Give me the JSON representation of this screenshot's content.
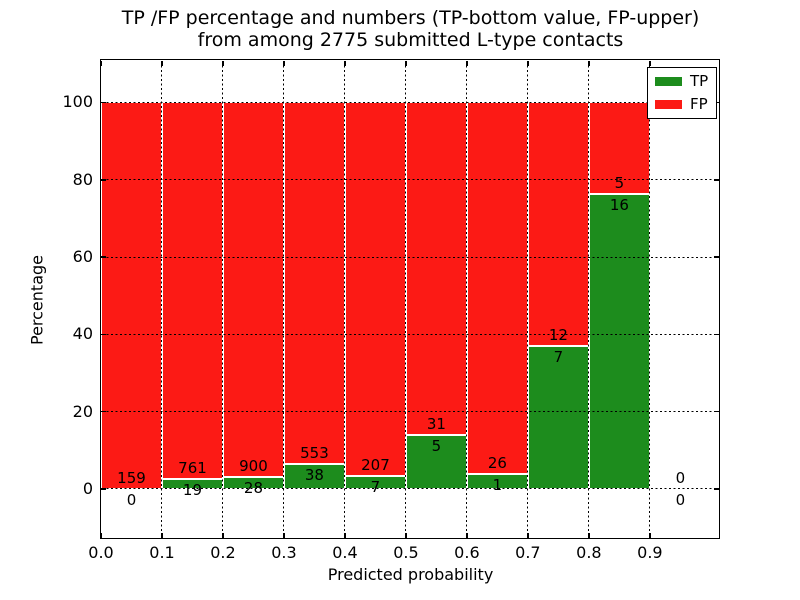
{
  "chart_data": {
    "type": "bar",
    "stacked": true,
    "normalized": "each bar stacks to 100%",
    "title_lines": [
      "TP /FP percentage and numbers (TP-bottom value, FP-upper)",
      "from among 2775 submitted L-type contacts"
    ],
    "xlabel": "Predicted probability",
    "ylabel": "Percentage",
    "total_contacts": 2775,
    "x_tick_labels": [
      "0.0",
      "0.1",
      "0.2",
      "0.3",
      "0.4",
      "0.5",
      "0.6",
      "0.7",
      "0.8",
      "0.9"
    ],
    "y_ticks": [
      0,
      20,
      40,
      60,
      80,
      100
    ],
    "xlim": [
      0,
      1.015
    ],
    "ylim": [
      -13,
      111
    ],
    "grid": {
      "style": "dotted",
      "color": "#000000",
      "on": true
    },
    "bins": [
      {
        "x0": 0.0,
        "x1": 0.1,
        "tp": 0,
        "fp": 159
      },
      {
        "x0": 0.1,
        "x1": 0.2,
        "tp": 19,
        "fp": 761
      },
      {
        "x0": 0.2,
        "x1": 0.3,
        "tp": 28,
        "fp": 900
      },
      {
        "x0": 0.3,
        "x1": 0.4,
        "tp": 38,
        "fp": 553
      },
      {
        "x0": 0.4,
        "x1": 0.5,
        "tp": 7,
        "fp": 207
      },
      {
        "x0": 0.5,
        "x1": 0.6,
        "tp": 5,
        "fp": 31
      },
      {
        "x0": 0.6,
        "x1": 0.7,
        "tp": 1,
        "fp": 26
      },
      {
        "x0": 0.7,
        "x1": 0.8,
        "tp": 7,
        "fp": 12
      },
      {
        "x0": 0.8,
        "x1": 0.9,
        "tp": 16,
        "fp": 5
      },
      {
        "x0": 0.9,
        "x1": 1.0,
        "tp": 0,
        "fp": 0
      }
    ],
    "tp_percent": [
      0,
      2.44,
      3.02,
      6.43,
      3.27,
      13.89,
      3.7,
      36.84,
      76.19,
      0
    ],
    "series": [
      {
        "name": "TP",
        "color": "#1d8c1d"
      },
      {
        "name": "FP",
        "color": "#fc1a15"
      }
    ],
    "legend": {
      "position": "upper right",
      "entries": [
        "TP",
        "FP"
      ]
    },
    "colors": {
      "tp_green": "#1d8c1d",
      "fp_red": "#fc1a15",
      "bar_edge": "#ffffff",
      "axes": "#000000"
    }
  }
}
